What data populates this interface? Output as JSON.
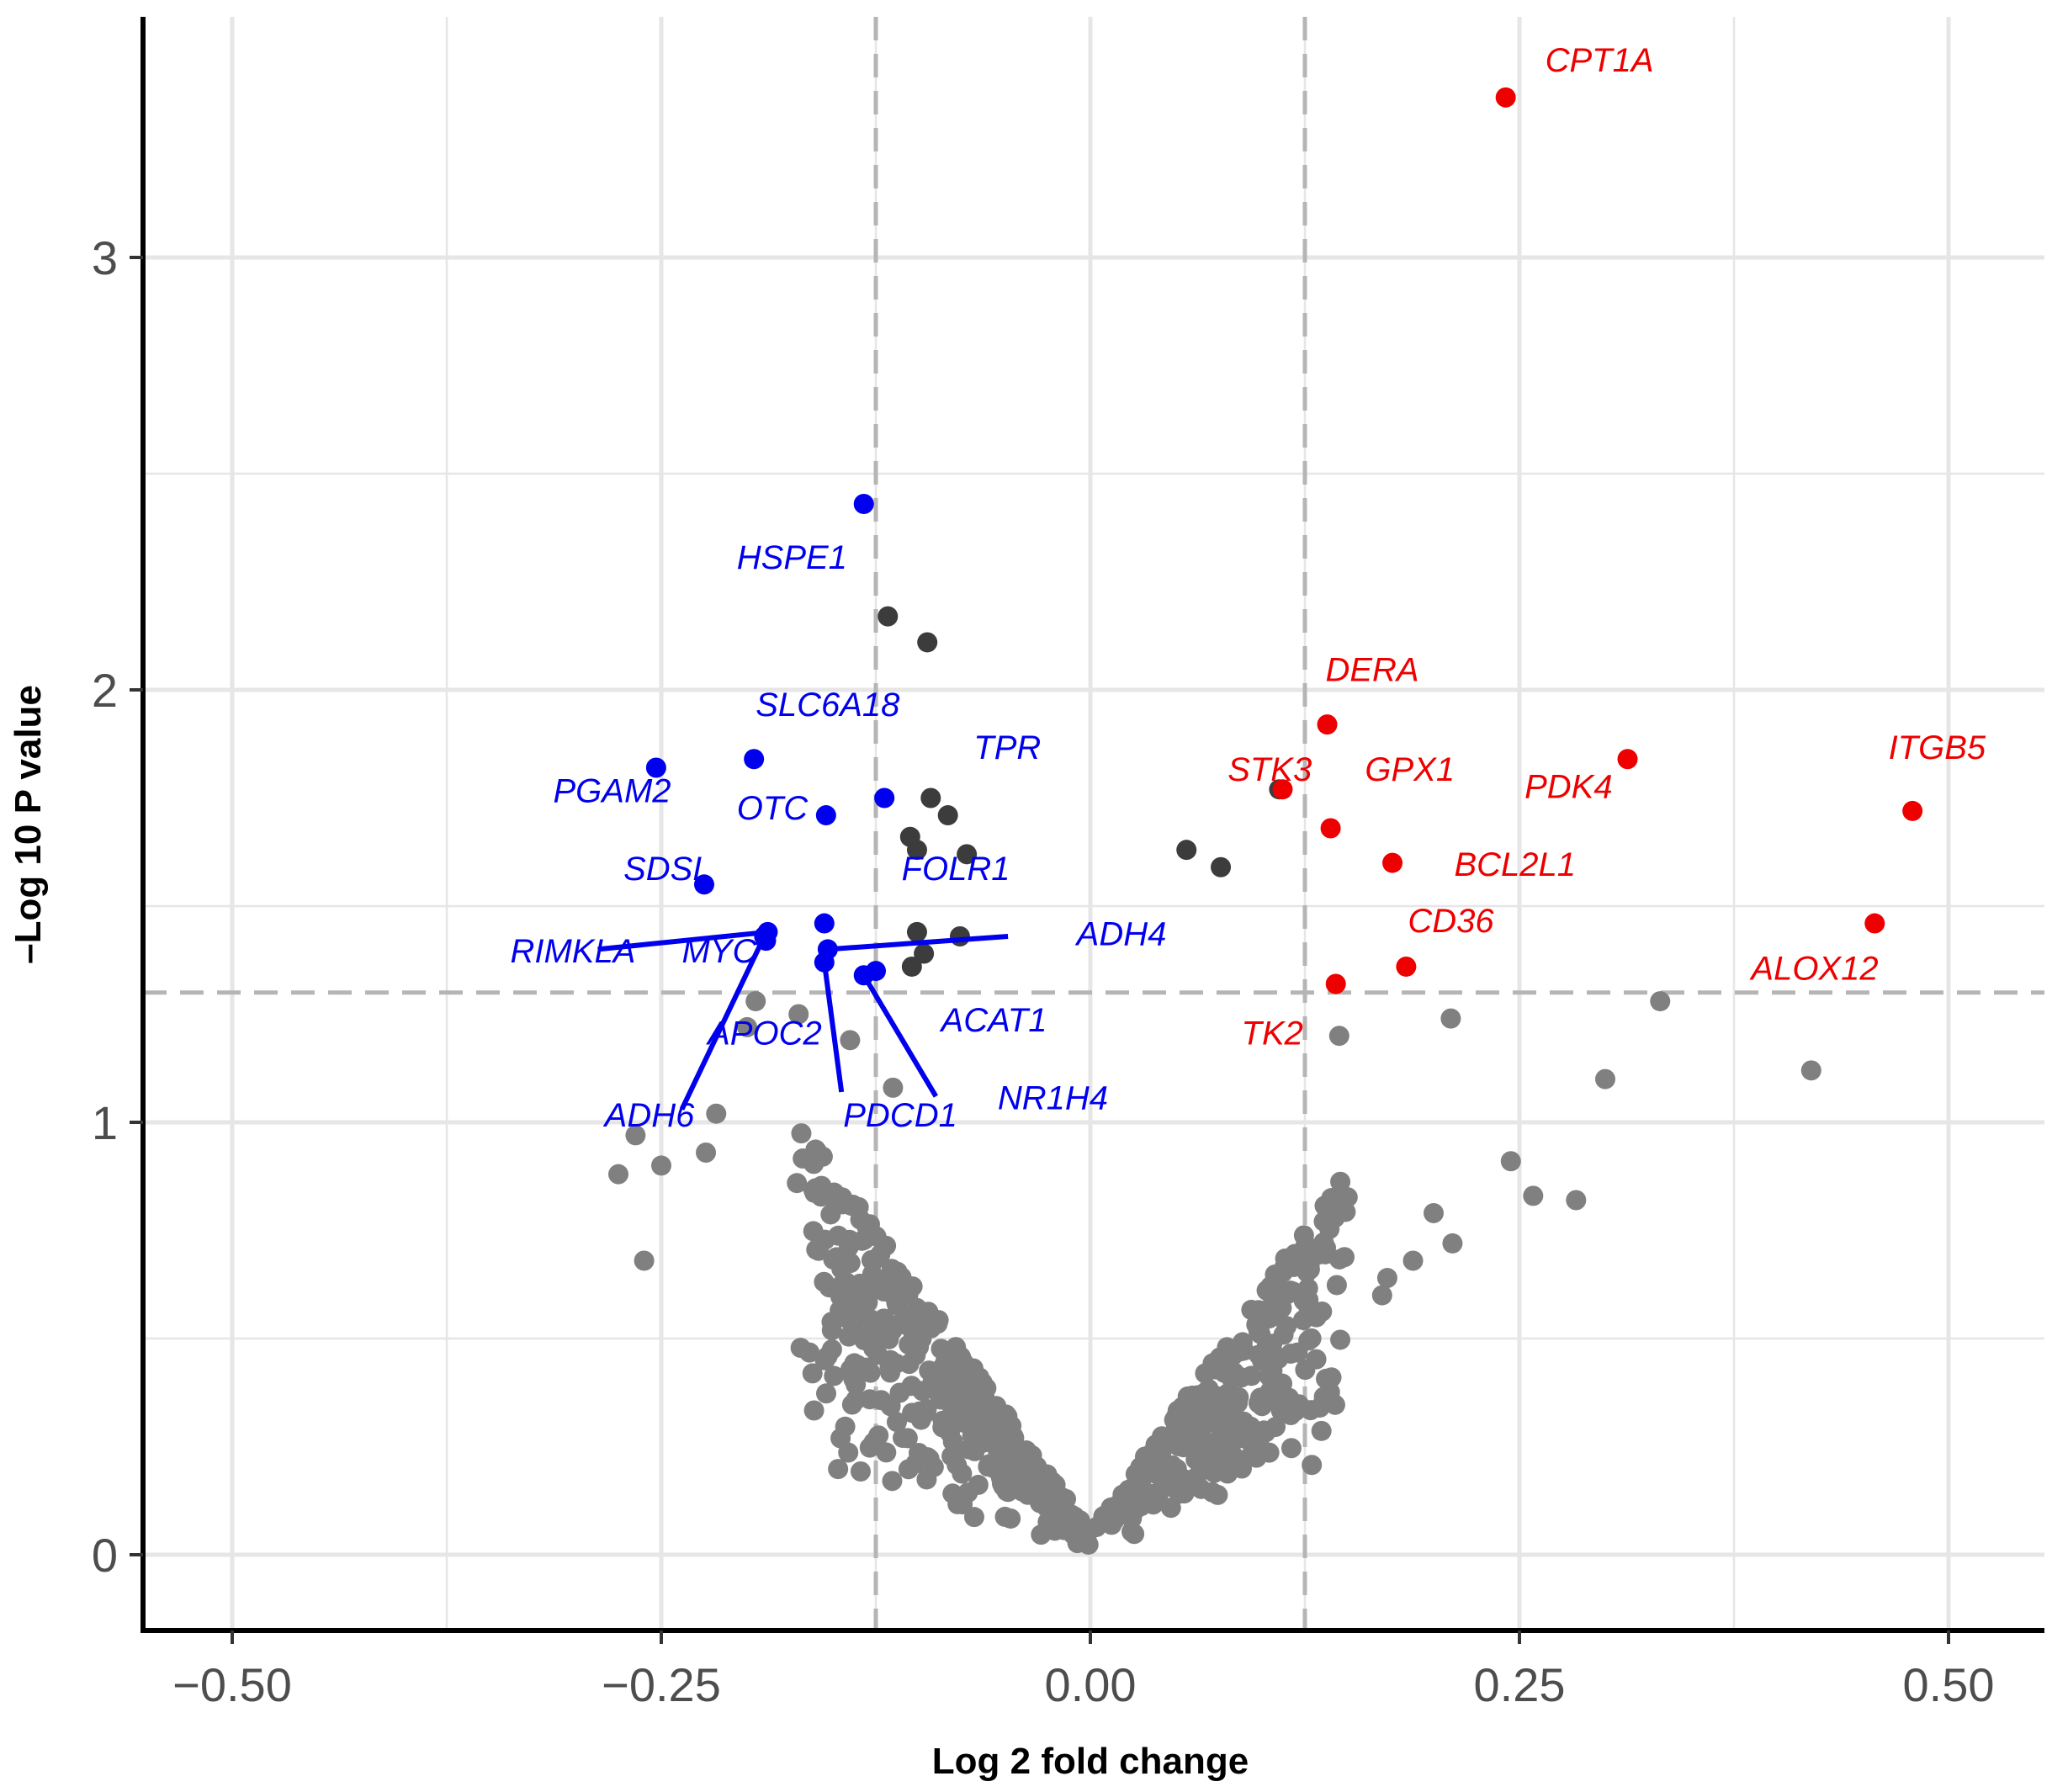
{
  "chart_data": {
    "type": "scatter",
    "subtype": "volcano",
    "title": "",
    "xlabel": "Log 2 fold change",
    "ylabel": "–Log 10 P value",
    "xlim": [
      -0.55,
      0.55
    ],
    "ylim": [
      -0.15,
      3.5
    ],
    "x_ticks": [
      -0.5,
      -0.25,
      0.0,
      0.25,
      0.5
    ],
    "x_tick_labels": [
      "−0.50",
      "−0.25",
      "0.00",
      "0.25",
      "0.50"
    ],
    "y_ticks": [
      0,
      1,
      2,
      3
    ],
    "y_tick_labels": [
      "0",
      "1",
      "2",
      "3"
    ],
    "grid": true,
    "thresholds": {
      "fold_change": [
        -0.125,
        0.125
      ],
      "neg_log10_p": 1.3
    },
    "colors": {
      "down": "#0000ee",
      "up": "#ee0000",
      "sig_unlabeled": "#3c3c3c",
      "not_significant": "#808080",
      "threshold": "#b5b5b5",
      "grid": "#e6e6e6",
      "axis": "#000000"
    },
    "labeled_points": [
      {
        "gene": "CPT1A",
        "x": 0.242,
        "y": 3.37,
        "dir": "up",
        "lx": 0.265,
        "ly": 3.43
      },
      {
        "gene": "DERA",
        "x": 0.138,
        "y": 1.92,
        "dir": "up",
        "lx": 0.137,
        "ly": 2.02
      },
      {
        "gene": "STK3",
        "x": 0.112,
        "y": 1.77,
        "dir": "up",
        "lx": 0.08,
        "ly": 1.79
      },
      {
        "gene": "GPX1",
        "x": 0.14,
        "y": 1.68,
        "dir": "up",
        "lx": 0.16,
        "ly": 1.79
      },
      {
        "gene": "PDK4",
        "x": 0.313,
        "y": 1.84,
        "dir": "up",
        "lx": 0.253,
        "ly": 1.75
      },
      {
        "gene": "ITGB5",
        "x": 0.479,
        "y": 1.72,
        "dir": "up",
        "lx": 0.465,
        "ly": 1.84
      },
      {
        "gene": "BCL2L1",
        "x": 0.176,
        "y": 1.6,
        "dir": "up",
        "lx": 0.212,
        "ly": 1.57
      },
      {
        "gene": "CD36",
        "x": 0.184,
        "y": 1.36,
        "dir": "up",
        "lx": 0.185,
        "ly": 1.44
      },
      {
        "gene": "ALOX12",
        "x": 0.457,
        "y": 1.46,
        "dir": "up",
        "lx": 0.385,
        "ly": 1.33
      },
      {
        "gene": "TK2",
        "x": 0.143,
        "y": 1.32,
        "dir": "up",
        "lx": 0.088,
        "ly": 1.18
      },
      {
        "gene": "HSPE1",
        "x": -0.132,
        "y": 2.43,
        "dir": "down",
        "lx": -0.206,
        "ly": 2.28
      },
      {
        "gene": "SLC6A18",
        "x": -0.196,
        "y": 1.84,
        "dir": "down",
        "lx": -0.195,
        "ly": 1.94
      },
      {
        "gene": "TPR",
        "x": -0.12,
        "y": 1.75,
        "dir": "down",
        "lx": -0.068,
        "ly": 1.84
      },
      {
        "gene": "PGAM2",
        "x": -0.253,
        "y": 1.82,
        "dir": "down",
        "lx": -0.313,
        "ly": 1.74
      },
      {
        "gene": "OTC",
        "x": -0.154,
        "y": 1.71,
        "dir": "down",
        "lx": -0.206,
        "ly": 1.7
      },
      {
        "gene": "SDSL",
        "x": -0.225,
        "y": 1.55,
        "dir": "down",
        "lx": -0.272,
        "ly": 1.56
      },
      {
        "gene": "FOLR1",
        "x": -0.155,
        "y": 1.46,
        "dir": "down",
        "lx": -0.11,
        "ly": 1.56
      },
      {
        "gene": "RIMKLA",
        "x": -0.188,
        "y": 1.44,
        "dir": "down",
        "lx": -0.338,
        "ly": 1.37,
        "seg": [
          -0.287,
          1.4
        ]
      },
      {
        "gene": "MYC",
        "x": -0.189,
        "y": 1.42,
        "dir": "down",
        "lx": -0.238,
        "ly": 1.37
      },
      {
        "gene": "ADH4",
        "x": -0.153,
        "y": 1.4,
        "dir": "down",
        "lx": -0.008,
        "ly": 1.41,
        "seg": [
          -0.048,
          1.43
        ]
      },
      {
        "gene": "APOC2",
        "x": -0.19,
        "y": 1.43,
        "dir": "down",
        "lx": -0.223,
        "ly": 1.18,
        "seg": [
          -0.238,
          1.03
        ]
      },
      {
        "gene": "ADH6",
        "x": -0.19,
        "y": 1.43,
        "dir": "down",
        "lx": -0.283,
        "ly": 0.99
      },
      {
        "gene": "ACAT1",
        "x": -0.132,
        "y": 1.34,
        "dir": "down",
        "lx": -0.087,
        "ly": 1.21,
        "seg": [
          -0.09,
          1.06
        ]
      },
      {
        "gene": "PDCD1",
        "x": -0.155,
        "y": 1.37,
        "dir": "down",
        "lx": -0.144,
        "ly": 0.99,
        "seg": [
          -0.145,
          1.07
        ]
      },
      {
        "gene": "NR1H4",
        "x": -0.125,
        "y": 1.35,
        "dir": "down",
        "lx": -0.054,
        "ly": 1.03
      }
    ],
    "sig_unlabeled_points": [
      [
        -0.118,
        2.17
      ],
      [
        -0.095,
        2.11
      ],
      [
        -0.093,
        1.75
      ],
      [
        -0.083,
        1.71
      ],
      [
        -0.105,
        1.66
      ],
      [
        -0.072,
        1.62
      ],
      [
        -0.101,
        1.63
      ],
      [
        0.056,
        1.63
      ],
      [
        0.076,
        1.59
      ],
      [
        0.11,
        1.77
      ],
      [
        -0.101,
        1.44
      ],
      [
        -0.076,
        1.43
      ],
      [
        -0.097,
        1.39
      ],
      [
        -0.104,
        1.36
      ]
    ],
    "not_significant_points": [
      [
        0.332,
        1.28
      ],
      [
        0.3,
        1.1
      ],
      [
        0.42,
        1.12
      ],
      [
        0.21,
        1.24
      ],
      [
        0.245,
        0.91
      ],
      [
        0.258,
        0.83
      ],
      [
        0.283,
        0.82
      ],
      [
        0.2,
        0.79
      ],
      [
        0.188,
        0.68
      ],
      [
        0.211,
        0.72
      ],
      [
        0.17,
        0.6
      ],
      [
        0.173,
        0.64
      ],
      [
        0.145,
        1.2
      ],
      [
        -0.265,
        0.97
      ],
      [
        -0.275,
        0.88
      ],
      [
        -0.25,
        0.9
      ],
      [
        -0.224,
        0.93
      ],
      [
        -0.218,
        1.02
      ],
      [
        -0.26,
        0.68
      ],
      [
        -0.195,
        1.28
      ],
      [
        -0.17,
        1.25
      ],
      [
        -0.2,
        1.22
      ],
      [
        -0.14,
        1.19
      ],
      [
        -0.115,
        1.08
      ]
    ],
    "cloud": {
      "count": 640,
      "description": "dense V-shaped cloud of non-significant genes centred on 0.00"
    }
  }
}
